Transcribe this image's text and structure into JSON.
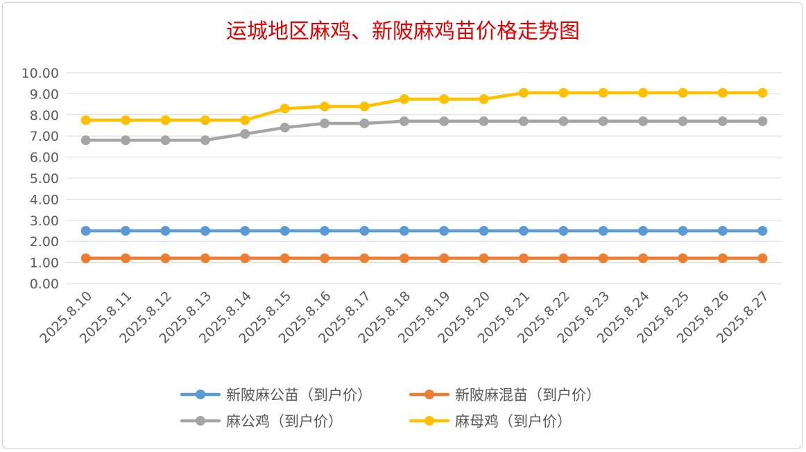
{
  "chart_data": {
    "type": "line",
    "title": "运城地区麻鸡、新陂麻鸡苗价格走势图",
    "xlabel": "",
    "ylabel": "",
    "ylim": [
      0,
      10
    ],
    "yticks": [
      "0.00",
      "1.00",
      "2.00",
      "3.00",
      "4.00",
      "5.00",
      "6.00",
      "7.00",
      "8.00",
      "9.00",
      "10.00"
    ],
    "grid": true,
    "legend_position": "bottom",
    "categories": [
      "2025.8.10",
      "2025.8.11",
      "2025.8.12",
      "2025.8.13",
      "2025.8.14",
      "2025.8.15",
      "2025.8.16",
      "2025.8.17",
      "2025.8.18",
      "2025.8.19",
      "2025.8.20",
      "2025.8.21",
      "2025.8.22",
      "2025.8.23",
      "2025.8.24",
      "2025.8.25",
      "2025.8.26",
      "2025.8.27"
    ],
    "series": [
      {
        "name": "新陂麻公苗（到户价）",
        "color": "#5b9bd5",
        "values": [
          2.5,
          2.5,
          2.5,
          2.5,
          2.5,
          2.5,
          2.5,
          2.5,
          2.5,
          2.5,
          2.5,
          2.5,
          2.5,
          2.5,
          2.5,
          2.5,
          2.5,
          2.5
        ]
      },
      {
        "name": "新陂麻混苗（到户价）",
        "color": "#ed7d31",
        "values": [
          1.2,
          1.2,
          1.2,
          1.2,
          1.2,
          1.2,
          1.2,
          1.2,
          1.2,
          1.2,
          1.2,
          1.2,
          1.2,
          1.2,
          1.2,
          1.2,
          1.2,
          1.2
        ]
      },
      {
        "name": "麻公鸡（到户价）",
        "color": "#a5a5a5",
        "values": [
          6.8,
          6.8,
          6.8,
          6.8,
          7.1,
          7.4,
          7.6,
          7.6,
          7.7,
          7.7,
          7.7,
          7.7,
          7.7,
          7.7,
          7.7,
          7.7,
          7.7,
          7.7
        ]
      },
      {
        "name": "麻母鸡（到户价）",
        "color": "#ffc000",
        "values": [
          7.75,
          7.75,
          7.75,
          7.75,
          7.75,
          8.3,
          8.4,
          8.4,
          8.75,
          8.75,
          8.75,
          9.05,
          9.05,
          9.05,
          9.05,
          9.05,
          9.05,
          9.05
        ]
      }
    ]
  }
}
